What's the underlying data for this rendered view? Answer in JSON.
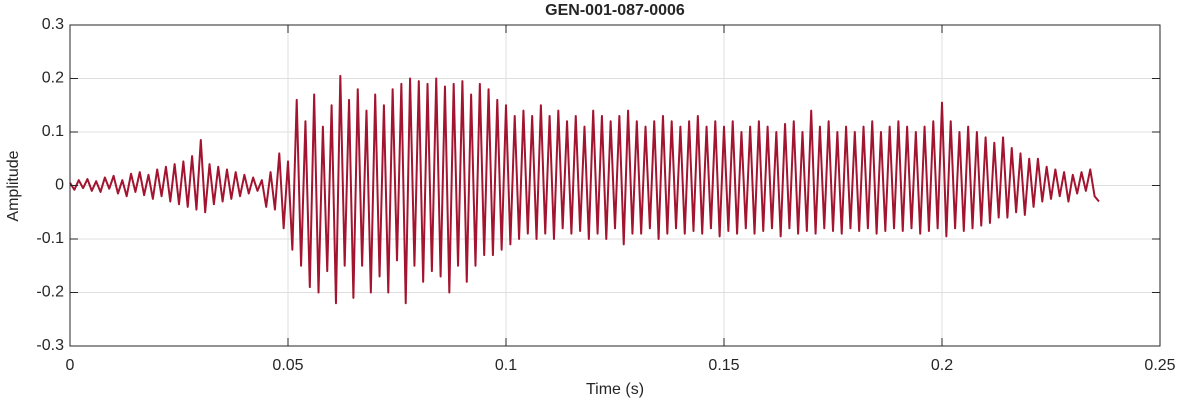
{
  "chart_data": {
    "type": "line",
    "title": "GEN-001-087-0006",
    "xlabel": "Time (s)",
    "ylabel": "Amplitude",
    "color": "#a2142f",
    "grid": true,
    "xlim": [
      0,
      0.25
    ],
    "xticks": [
      0,
      0.05,
      0.1,
      0.15,
      0.2,
      0.25
    ],
    "ylim": [
      -0.3,
      0.3
    ],
    "yticks": [
      -0.3,
      -0.2,
      -0.1,
      0,
      0.1,
      0.2,
      0.3
    ],
    "x": [
      0,
      0.001,
      0.002,
      0.003,
      0.004,
      0.005,
      0.006,
      0.007,
      0.008,
      0.009,
      0.01,
      0.011,
      0.012,
      0.013,
      0.014,
      0.015,
      0.016,
      0.017,
      0.018,
      0.019,
      0.02,
      0.021,
      0.022,
      0.023,
      0.024,
      0.025,
      0.026,
      0.027,
      0.028,
      0.029,
      0.03,
      0.031,
      0.032,
      0.033,
      0.034,
      0.035,
      0.036,
      0.037,
      0.038,
      0.039,
      0.04,
      0.041,
      0.042,
      0.043,
      0.044,
      0.045,
      0.046,
      0.047,
      0.048,
      0.049,
      0.05,
      0.051,
      0.052,
      0.053,
      0.054,
      0.055,
      0.056,
      0.057,
      0.058,
      0.059,
      0.06,
      0.061,
      0.062,
      0.063,
      0.064,
      0.065,
      0.066,
      0.067,
      0.068,
      0.069,
      0.07,
      0.071,
      0.072,
      0.073,
      0.074,
      0.075,
      0.076,
      0.077,
      0.078,
      0.079,
      0.08,
      0.081,
      0.082,
      0.083,
      0.084,
      0.085,
      0.086,
      0.087,
      0.088,
      0.089,
      0.09,
      0.091,
      0.092,
      0.093,
      0.094,
      0.095,
      0.096,
      0.097,
      0.098,
      0.099,
      0.1,
      0.101,
      0.102,
      0.103,
      0.104,
      0.105,
      0.106,
      0.107,
      0.108,
      0.109,
      0.11,
      0.111,
      0.112,
      0.113,
      0.114,
      0.115,
      0.116,
      0.117,
      0.118,
      0.119,
      0.12,
      0.121,
      0.122,
      0.123,
      0.124,
      0.125,
      0.126,
      0.127,
      0.128,
      0.129,
      0.13,
      0.131,
      0.132,
      0.133,
      0.134,
      0.135,
      0.136,
      0.137,
      0.138,
      0.139,
      0.14,
      0.141,
      0.142,
      0.143,
      0.144,
      0.145,
      0.146,
      0.147,
      0.148,
      0.149,
      0.15,
      0.151,
      0.152,
      0.153,
      0.154,
      0.155,
      0.156,
      0.157,
      0.158,
      0.159,
      0.16,
      0.161,
      0.162,
      0.163,
      0.164,
      0.165,
      0.166,
      0.167,
      0.168,
      0.169,
      0.17,
      0.171,
      0.172,
      0.173,
      0.174,
      0.175,
      0.176,
      0.177,
      0.178,
      0.179,
      0.18,
      0.181,
      0.182,
      0.183,
      0.184,
      0.185,
      0.186,
      0.187,
      0.188,
      0.189,
      0.19,
      0.191,
      0.192,
      0.193,
      0.194,
      0.195,
      0.196,
      0.197,
      0.198,
      0.199,
      0.2,
      0.201,
      0.202,
      0.203,
      0.204,
      0.205,
      0.206,
      0.207,
      0.208,
      0.209,
      0.21,
      0.211,
      0.212,
      0.213,
      0.214,
      0.215,
      0.216,
      0.217,
      0.218,
      0.219,
      0.22,
      0.221,
      0.222,
      0.223,
      0.224,
      0.225,
      0.226,
      0.227,
      0.228,
      0.229,
      0.23,
      0.231,
      0.232,
      0.233,
      0.234,
      0.235,
      0.236
    ],
    "values": [
      0.005,
      -0.008,
      0.01,
      -0.005,
      0.012,
      -0.01,
      0.008,
      -0.012,
      0.015,
      -0.006,
      0.018,
      -0.015,
      0.01,
      -0.02,
      0.022,
      -0.012,
      0.025,
      -0.018,
      0.02,
      -0.025,
      0.03,
      -0.02,
      0.035,
      -0.03,
      0.04,
      -0.035,
      0.045,
      -0.04,
      0.055,
      -0.045,
      0.085,
      -0.05,
      0.04,
      -0.035,
      0.035,
      -0.03,
      0.03,
      -0.025,
      0.025,
      -0.02,
      0.02,
      -0.015,
      0.015,
      -0.01,
      0.01,
      -0.04,
      0.025,
      -0.045,
      0.06,
      -0.08,
      0.045,
      -0.12,
      0.16,
      -0.15,
      0.12,
      -0.19,
      0.17,
      -0.2,
      0.11,
      -0.16,
      0.15,
      -0.22,
      0.205,
      -0.15,
      0.16,
      -0.21,
      0.18,
      -0.15,
      0.14,
      -0.2,
      0.17,
      -0.17,
      0.15,
      -0.2,
      0.18,
      -0.14,
      0.19,
      -0.22,
      0.2,
      -0.15,
      0.195,
      -0.18,
      0.19,
      -0.16,
      0.2,
      -0.17,
      0.185,
      -0.2,
      0.19,
      -0.15,
      0.195,
      -0.18,
      0.17,
      -0.15,
      0.19,
      -0.13,
      0.18,
      -0.13,
      0.16,
      -0.12,
      0.15,
      -0.11,
      0.13,
      -0.1,
      0.14,
      -0.09,
      0.13,
      -0.1,
      0.15,
      -0.09,
      0.13,
      -0.1,
      0.14,
      -0.08,
      0.12,
      -0.09,
      0.13,
      -0.085,
      0.11,
      -0.1,
      0.14,
      -0.09,
      0.13,
      -0.1,
      0.12,
      -0.08,
      0.13,
      -0.11,
      0.14,
      -0.09,
      0.12,
      -0.09,
      0.11,
      -0.08,
      0.12,
      -0.1,
      0.13,
      -0.09,
      0.12,
      -0.08,
      0.11,
      -0.09,
      0.12,
      -0.085,
      0.13,
      -0.09,
      0.11,
      -0.08,
      0.12,
      -0.095,
      0.11,
      -0.085,
      0.12,
      -0.09,
      0.1,
      -0.08,
      0.11,
      -0.09,
      0.12,
      -0.085,
      0.11,
      -0.08,
      0.1,
      -0.095,
      0.115,
      -0.08,
      0.12,
      -0.09,
      0.1,
      -0.085,
      0.14,
      -0.09,
      0.11,
      -0.08,
      0.12,
      -0.085,
      0.1,
      -0.09,
      0.11,
      -0.08,
      0.1,
      -0.085,
      0.11,
      -0.08,
      0.12,
      -0.09,
      0.1,
      -0.085,
      0.11,
      -0.08,
      0.12,
      -0.085,
      0.11,
      -0.08,
      0.1,
      -0.09,
      0.11,
      -0.085,
      0.12,
      -0.08,
      0.155,
      -0.095,
      0.12,
      -0.08,
      0.1,
      -0.085,
      0.11,
      -0.08,
      0.1,
      -0.075,
      0.09,
      -0.07,
      0.08,
      -0.06,
      0.09,
      -0.06,
      0.07,
      -0.05,
      0.06,
      -0.055,
      0.05,
      -0.04,
      0.05,
      -0.03,
      0.035,
      -0.025,
      0.03,
      -0.02,
      0.025,
      -0.03,
      0.02,
      -0.015,
      0.025,
      -0.01,
      0.03,
      -0.02,
      -0.03
    ]
  }
}
